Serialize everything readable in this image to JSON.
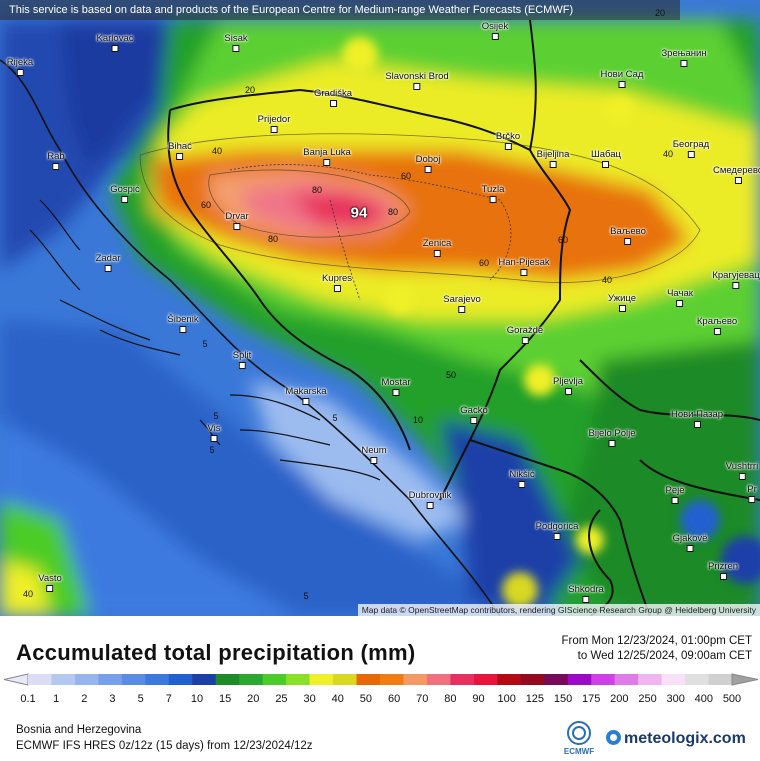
{
  "attribution_top": "This service is based on data and products of the European Centre for Medium-range Weather Forecasts (ECMWF)",
  "attribution_bottom": "Map data © OpenStreetMap contributors, rendering GIScience Research Group @ Heidelberg University",
  "map": {
    "max_value": "94",
    "cities": [
      {
        "name": "Karlovac"
      },
      {
        "name": "Sisak"
      },
      {
        "name": "Osijek"
      },
      {
        "name": "Зрењанин"
      },
      {
        "name": "Rijeka"
      },
      {
        "name": "Gradiška"
      },
      {
        "name": "Slavonski Brod"
      },
      {
        "name": "Нови Сад"
      },
      {
        "name": "Prijedor"
      },
      {
        "name": "Brčko"
      },
      {
        "name": "Bihać"
      },
      {
        "name": "Banja Luka"
      },
      {
        "name": "Doboj"
      },
      {
        "name": "Bijeljina"
      },
      {
        "name": "Шабац"
      },
      {
        "name": "Београд"
      },
      {
        "name": "Rab"
      },
      {
        "name": "Смедерево"
      },
      {
        "name": "Gospić"
      },
      {
        "name": "Tuzla"
      },
      {
        "name": "Drvar"
      },
      {
        "name": "Ваљево"
      },
      {
        "name": "Zenica"
      },
      {
        "name": "Zadar"
      },
      {
        "name": "Han-Pijesak"
      },
      {
        "name": "Kupres"
      },
      {
        "name": "Крагујевац"
      },
      {
        "name": "Sarajevo"
      },
      {
        "name": "Ужице"
      },
      {
        "name": "Чачак"
      },
      {
        "name": "Šibenik"
      },
      {
        "name": "Краљево"
      },
      {
        "name": "Goražde"
      },
      {
        "name": "Split"
      },
      {
        "name": "Pljevlja"
      },
      {
        "name": "Mostar"
      },
      {
        "name": "Makarska"
      },
      {
        "name": "Gacko"
      },
      {
        "name": "Нови Пазар"
      },
      {
        "name": "Vis"
      },
      {
        "name": "Bijelo Polje"
      },
      {
        "name": "Neum"
      },
      {
        "name": "Vushtrri"
      },
      {
        "name": "Nikšić"
      },
      {
        "name": "Pejë"
      },
      {
        "name": "Dubrovnik"
      },
      {
        "name": "Podgorica"
      },
      {
        "name": "Gjakovë"
      },
      {
        "name": "Prizren"
      },
      {
        "name": "Vasto"
      },
      {
        "name": "Shkodra"
      },
      {
        "name": "Pr"
      }
    ],
    "contour_labels": [
      "20",
      "20",
      "40",
      "40",
      "40",
      "60",
      "60",
      "60",
      "60",
      "80",
      "80",
      "80",
      "50",
      "5",
      "5",
      "5",
      "5",
      "5",
      "10",
      "40"
    ]
  },
  "footer": {
    "title": "Accumulated total precipitation (mm)",
    "period_from": "From Mon 12/23/2024, 01:00pm CET",
    "period_to": "to Wed 12/25/2024, 09:00am CET",
    "region": "Bosnia and Herzegovina",
    "model": "ECMWF IFS HRES 0z/12z (15 days) from  12/23/2024/12z",
    "brand": "meteologix.com",
    "ecmwf_label": "ECMWF"
  },
  "legend": {
    "ticks": [
      "0.1",
      "1",
      "2",
      "3",
      "5",
      "7",
      "10",
      "15",
      "20",
      "25",
      "30",
      "40",
      "50",
      "60",
      "70",
      "80",
      "90",
      "100",
      "125",
      "150",
      "175",
      "200",
      "250",
      "300",
      "400",
      "500"
    ],
    "colors": [
      "#dcdcf4",
      "#b4c8f0",
      "#96b4ee",
      "#78a0ea",
      "#5a8ce4",
      "#3c78de",
      "#2060d0",
      "#1c40a8",
      "#1e8a28",
      "#2aa830",
      "#4ccc28",
      "#8ae028",
      "#f0f028",
      "#d8d820",
      "#e86808",
      "#f07c14",
      "#f49a64",
      "#f07080",
      "#e83060",
      "#e8143c",
      "#b40a14",
      "#960a1e",
      "#780a5a",
      "#9a0ac8",
      "#d040e8",
      "#e07ce8",
      "#f0b4f0",
      "#f8e0f8",
      "#e0e0e0",
      "#d0d0d0"
    ]
  }
}
